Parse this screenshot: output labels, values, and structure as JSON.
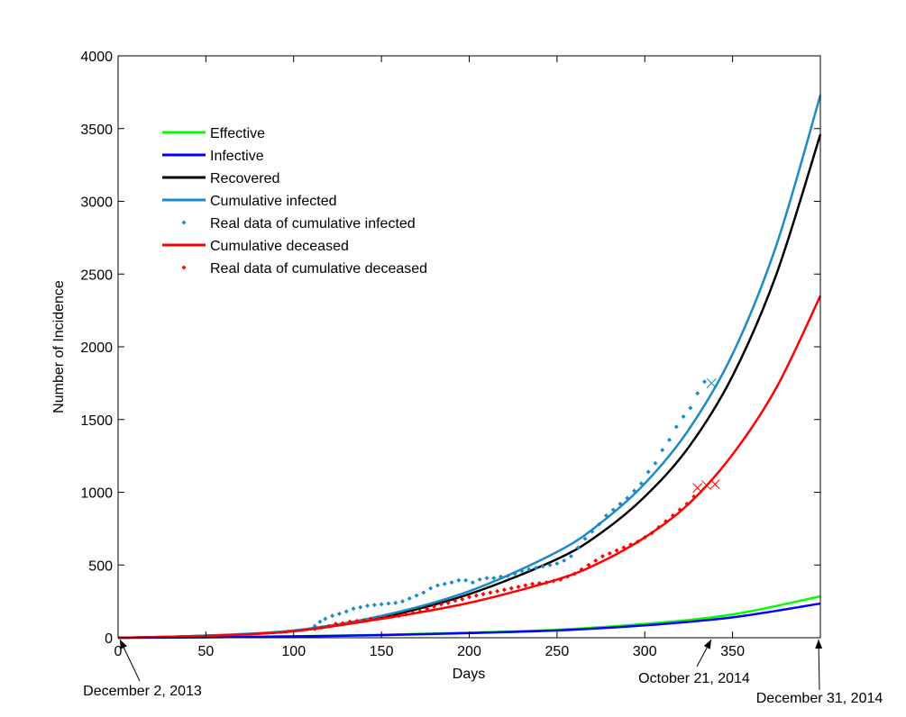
{
  "chart_data": {
    "type": "line",
    "title": "",
    "xlabel": "Days",
    "ylabel": "Number of Incidence",
    "xlim": [
      0,
      400
    ],
    "ylim": [
      0,
      4000
    ],
    "xticks": [
      0,
      50,
      100,
      150,
      200,
      250,
      300,
      350
    ],
    "yticks": [
      0,
      500,
      1000,
      1500,
      2000,
      2500,
      3000,
      3500,
      4000
    ],
    "legend_position": "top-left",
    "grid": false,
    "series": [
      {
        "name": "Effective",
        "kind": "line",
        "color": "#00ff00",
        "x": [
          0,
          50,
          100,
          150,
          200,
          250,
          300,
          350,
          400
        ],
        "y": [
          0,
          3,
          10,
          20,
          35,
          55,
          95,
          160,
          285
        ]
      },
      {
        "name": "Infective",
        "kind": "line",
        "color": "#0000ff",
        "x": [
          0,
          50,
          100,
          150,
          200,
          250,
          300,
          350,
          400
        ],
        "y": [
          0,
          3,
          9,
          18,
          32,
          50,
          85,
          140,
          235
        ]
      },
      {
        "name": "Recovered",
        "kind": "line",
        "color": "#000000",
        "x": [
          0,
          50,
          100,
          150,
          200,
          250,
          275,
          300,
          325,
          350,
          375,
          400
        ],
        "y": [
          0,
          15,
          45,
          140,
          300,
          540,
          720,
          970,
          1310,
          1800,
          2500,
          3460
        ]
      },
      {
        "name": "Cumulative infected",
        "kind": "line",
        "color": "#1b8bc8",
        "x": [
          0,
          50,
          100,
          150,
          200,
          250,
          275,
          300,
          325,
          350,
          375,
          400
        ],
        "y": [
          0,
          15,
          50,
          150,
          320,
          590,
          790,
          1060,
          1430,
          1950,
          2700,
          3730
        ]
      },
      {
        "name": "Real data of cumulative infected",
        "kind": "points",
        "color": "#1b8bc8",
        "x": [
          112,
          115,
          118,
          122,
          126,
          130,
          134,
          138,
          142,
          146,
          150,
          154,
          158,
          162,
          166,
          170,
          174,
          178,
          182,
          186,
          190,
          194,
          198,
          202,
          206,
          210,
          214,
          218,
          222,
          226,
          230,
          234,
          238,
          242,
          246,
          250,
          254,
          258,
          262,
          266,
          270,
          274,
          278,
          282,
          286,
          290,
          294,
          298,
          302,
          306,
          310,
          314,
          318,
          322,
          326,
          330,
          334
        ],
        "y": [
          80,
          110,
          130,
          150,
          165,
          180,
          200,
          210,
          220,
          225,
          230,
          235,
          240,
          250,
          270,
          290,
          310,
          340,
          360,
          370,
          380,
          395,
          395,
          380,
          400,
          410,
          410,
          420,
          425,
          440,
          460,
          470,
          480,
          490,
          500,
          510,
          530,
          560,
          620,
          680,
          730,
          780,
          840,
          880,
          920,
          960,
          1010,
          1060,
          1140,
          1200,
          1290,
          1360,
          1450,
          1520,
          1580,
          1680,
          1760
        ]
      },
      {
        "name": "Cumulative deceased",
        "kind": "line",
        "color": "#ff0000",
        "x": [
          0,
          50,
          100,
          150,
          200,
          250,
          275,
          300,
          325,
          350,
          375,
          400
        ],
        "y": [
          0,
          12,
          45,
          130,
          240,
          400,
          520,
          690,
          920,
          1260,
          1720,
          2350
        ]
      },
      {
        "name": "Real data of cumulative deceased",
        "kind": "points",
        "color": "#ff0000",
        "x": [
          112,
          116,
          120,
          124,
          128,
          132,
          136,
          140,
          144,
          148,
          152,
          156,
          160,
          164,
          168,
          172,
          176,
          180,
          184,
          188,
          192,
          196,
          200,
          204,
          208,
          212,
          216,
          220,
          224,
          228,
          232,
          236,
          240,
          244,
          248,
          252,
          256,
          260,
          264,
          268,
          272,
          276,
          280,
          284,
          288,
          292,
          296,
          300,
          304,
          308,
          312,
          316,
          320,
          324,
          328
        ],
        "y": [
          60,
          70,
          80,
          95,
          100,
          110,
          115,
          120,
          130,
          135,
          140,
          145,
          150,
          160,
          170,
          180,
          200,
          215,
          230,
          240,
          255,
          265,
          280,
          290,
          300,
          310,
          320,
          330,
          340,
          350,
          360,
          370,
          375,
          380,
          390,
          400,
          420,
          440,
          470,
          500,
          530,
          560,
          580,
          600,
          620,
          640,
          660,
          690,
          720,
          760,
          800,
          840,
          880,
          920,
          970
        ]
      },
      {
        "name": "",
        "kind": "cross",
        "color": "#1b8bc8",
        "x": [
          338
        ],
        "y": [
          1750
        ]
      },
      {
        "name": "",
        "kind": "cross",
        "color": "#ff0000",
        "x": [
          330,
          335,
          340
        ],
        "y": [
          1030,
          1050,
          1055
        ]
      }
    ],
    "annotations": [
      {
        "text": "December 2, 2013",
        "target_x": 0
      },
      {
        "text": "October 21, 2014",
        "target_x": 323
      },
      {
        "text": "December 31, 2014",
        "target_x": 394
      }
    ]
  }
}
